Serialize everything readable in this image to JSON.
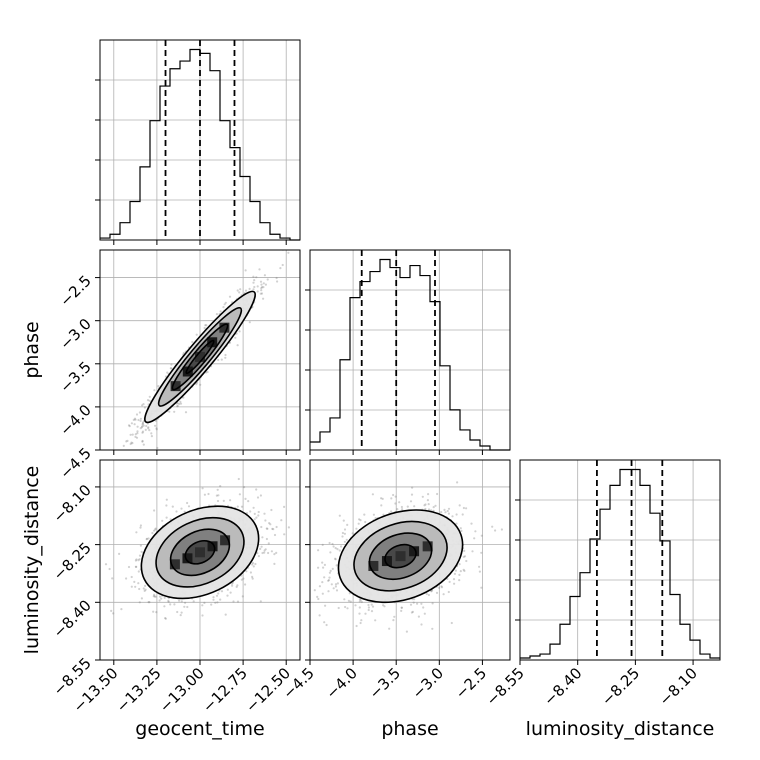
{
  "chart_data": {
    "type": "corner",
    "parameters": [
      "geocent_time",
      "phase",
      "luminosity_distance"
    ],
    "labels": {
      "x0": "geocent_time",
      "x1": "phase",
      "x2": "luminosity_distance",
      "y1": "phase",
      "y2": "luminosity_distance"
    },
    "ranges": {
      "geocent_time": [
        -13.58,
        -12.42
      ],
      "phase": [
        -4.5,
        -2.18
      ],
      "luminosity_distance": [
        -8.55,
        -8.03
      ]
    },
    "ticks": {
      "geocent_time": {
        "values": [
          -13.5,
          -13.25,
          -13.0,
          -12.75,
          -12.5
        ],
        "labels": [
          "−13.50",
          "−13.25",
          "−13.00",
          "−12.75",
          "−12.50"
        ]
      },
      "phase": {
        "values": [
          -4.5,
          -4.0,
          -3.5,
          -3.0,
          -2.5
        ],
        "labels": [
          "−4.5",
          "−4.0",
          "−3.5",
          "−3.0",
          "−2.5"
        ]
      },
      "luminosity_distance": {
        "values": [
          -8.55,
          -8.4,
          -8.25,
          -8.1
        ],
        "labels": [
          "−8.55",
          "−8.40",
          "−8.25",
          "−8.10"
        ]
      }
    },
    "quantiles": {
      "geocent_time": [
        -13.2,
        -13.0,
        -12.8
      ],
      "phase": [
        -3.9,
        -3.5,
        -3.05
      ],
      "luminosity_distance": [
        -8.35,
        -8.26,
        -8.18
      ]
    },
    "histograms": {
      "geocent_time": {
        "edges": [
          -13.58,
          -13.522,
          -13.464,
          -13.406,
          -13.348,
          -13.29,
          -13.232,
          -13.174,
          -13.116,
          -13.058,
          -13.0,
          -12.942,
          -12.884,
          -12.826,
          -12.768,
          -12.71,
          -12.652,
          -12.594,
          -12.536,
          -12.478,
          -12.42
        ],
        "counts": [
          1,
          3,
          9,
          20,
          38,
          62,
          80,
          89,
          93,
          99,
          97,
          88,
          62,
          48,
          33,
          20,
          9,
          3,
          1,
          0
        ]
      },
      "phase": {
        "edges": [
          -4.5,
          -4.384,
          -4.268,
          -4.152,
          -4.036,
          -3.92,
          -3.804,
          -3.688,
          -3.572,
          -3.456,
          -3.34,
          -3.224,
          -3.108,
          -2.992,
          -2.876,
          -2.76,
          -2.644,
          -2.528,
          -2.412,
          -2.296,
          -2.18
        ],
        "counts": [
          4,
          9,
          16,
          45,
          76,
          84,
          89,
          95,
          91,
          86,
          92,
          87,
          74,
          42,
          20,
          10,
          5,
          2,
          0,
          0
        ]
      },
      "luminosity_distance": {
        "edges": [
          -8.55,
          -8.524,
          -8.498,
          -8.472,
          -8.446,
          -8.42,
          -8.394,
          -8.368,
          -8.342,
          -8.316,
          -8.29,
          -8.264,
          -8.238,
          -8.212,
          -8.186,
          -8.16,
          -8.134,
          -8.108,
          -8.082,
          -8.056,
          -8.03
        ],
        "counts": [
          1,
          2,
          3,
          8,
          18,
          32,
          44,
          61,
          76,
          88,
          96,
          96,
          88,
          74,
          60,
          33,
          18,
          10,
          3,
          1
        ]
      }
    },
    "pairs": [
      {
        "x": "geocent_time",
        "y": "phase",
        "center": [
          -13.0,
          -3.42
        ],
        "sigma": [
          0.16,
          0.38
        ],
        "correlation": 0.95
      },
      {
        "x": "geocent_time",
        "y": "luminosity_distance",
        "center": [
          -13.0,
          -8.27
        ],
        "sigma": [
          0.17,
          0.06
        ],
        "correlation": 0.3
      },
      {
        "x": "phase",
        "y": "luminosity_distance",
        "center": [
          -3.45,
          -8.28
        ],
        "sigma": [
          0.36,
          0.06
        ],
        "correlation": 0.25
      }
    ],
    "contour_levels": [
      0.5,
      1.0,
      1.5,
      2.0
    ],
    "grid": true
  }
}
